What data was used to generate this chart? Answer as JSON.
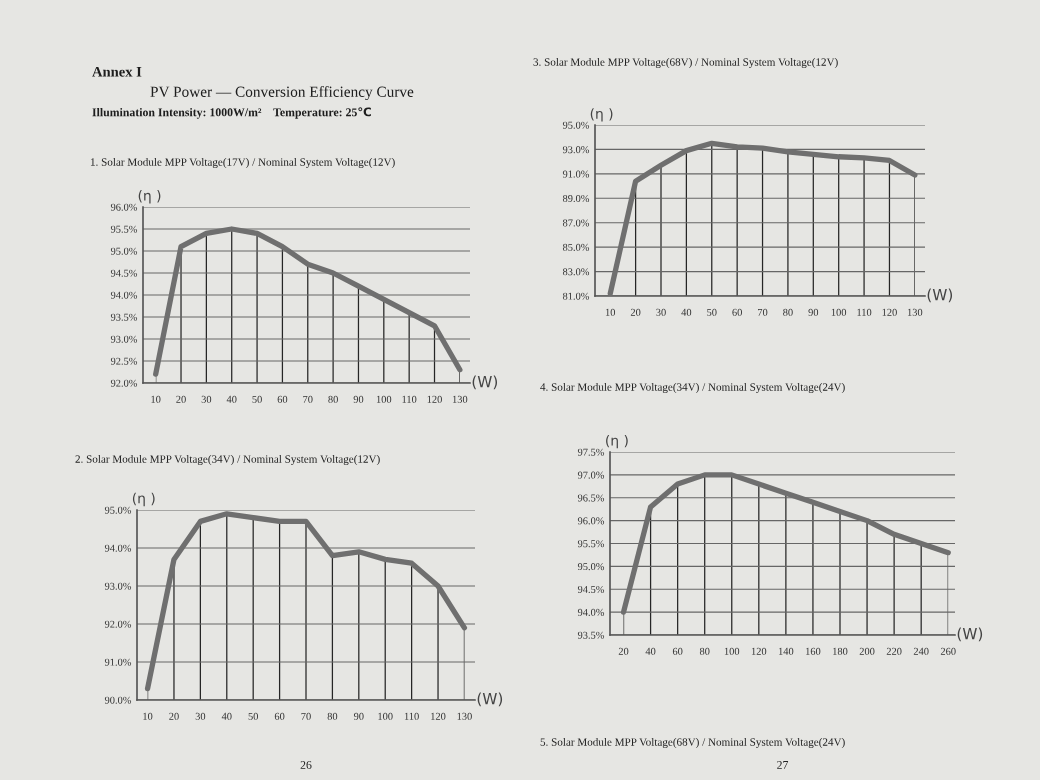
{
  "chart_data": [
    {
      "type": "line",
      "title": "1. Solar Module MPP Voltage(17V) / Nominal System Voltage(12V)",
      "xlabel": "(W)",
      "ylabel": "(η )",
      "x": [
        10,
        20,
        30,
        40,
        50,
        60,
        70,
        80,
        90,
        100,
        110,
        120,
        130
      ],
      "series": [
        {
          "color": "#6f6f6f",
          "values": [
            92.2,
            95.1,
            95.4,
            95.5,
            95.4,
            95.1,
            94.7,
            94.5,
            94.2,
            93.9,
            93.6,
            93.3,
            92.3
          ]
        }
      ],
      "xlim": [
        5,
        134
      ],
      "xticks": [
        10,
        20,
        30,
        40,
        50,
        60,
        70,
        80,
        90,
        100,
        110,
        120,
        130
      ],
      "ylim": [
        92,
        96
      ],
      "yticks": [
        {
          "value": 92,
          "label": "92.0%"
        },
        {
          "value": 92.5,
          "label": "92.5%"
        },
        {
          "value": 93,
          "label": "93.0%"
        },
        {
          "value": 93.5,
          "label": "93.5%"
        },
        {
          "value": 94,
          "label": "94.0%"
        },
        {
          "value": 94.5,
          "label": "94.5%"
        },
        {
          "value": 95,
          "label": "95.0%"
        },
        {
          "value": 95.5,
          "label": "95.5%"
        },
        {
          "value": 96,
          "label": "96.0%"
        }
      ],
      "grid": true,
      "line_style": "solid",
      "annotations": [
        "Annex I",
        "PV Power — Conversion Efficiency Curve",
        "Illumination Intensity: 1000W/m²    Temperature: 25℃"
      ]
    },
    {
      "type": "line",
      "title": "2. Solar Module MPP Voltage(34V) / Nominal System Voltage(12V)",
      "xlabel": "(W)",
      "ylabel": "(η )",
      "x": [
        10,
        20,
        30,
        40,
        50,
        60,
        70,
        80,
        90,
        100,
        110,
        120,
        130
      ],
      "series": [
        {
          "color": "#6f6f6f",
          "values": [
            90.3,
            93.7,
            94.7,
            94.9,
            94.8,
            94.7,
            94.7,
            93.8,
            93.9,
            93.7,
            93.6,
            93.0,
            91.9
          ]
        }
      ],
      "xlim": [
        6,
        134
      ],
      "xticks": [
        10,
        20,
        30,
        40,
        50,
        60,
        70,
        80,
        90,
        100,
        110,
        120,
        130
      ],
      "ylim": [
        90,
        95
      ],
      "yticks": [
        {
          "value": 90,
          "label": "90.0%"
        },
        {
          "value": 91,
          "label": "91.0%"
        },
        {
          "value": 92,
          "label": "92.0%"
        },
        {
          "value": 93,
          "label": "93.0%"
        },
        {
          "value": 94,
          "label": "94.0%"
        },
        {
          "value": 95,
          "label": "95.0%"
        }
      ],
      "grid": true,
      "line_style": "solid",
      "annotations": [
        "26"
      ]
    },
    {
      "type": "line",
      "title": "3. Solar Module MPP Voltage(68V) / Nominal System Voltage(12V)",
      "xlabel": "(W)",
      "ylabel": "(η )",
      "x": [
        10,
        20,
        30,
        40,
        50,
        60,
        70,
        80,
        90,
        100,
        110,
        120,
        130
      ],
      "series": [
        {
          "color": "#6f6f6f",
          "values": [
            81.2,
            90.4,
            91.7,
            92.9,
            93.5,
            93.2,
            93.1,
            92.8,
            92.6,
            92.4,
            92.3,
            92.1,
            90.9
          ]
        }
      ],
      "xlim": [
        4,
        134
      ],
      "xticks": [
        10,
        20,
        30,
        40,
        50,
        60,
        70,
        80,
        90,
        100,
        110,
        120,
        130
      ],
      "ylim": [
        81,
        95
      ],
      "yticks": [
        {
          "value": 81,
          "label": "81.0%"
        },
        {
          "value": 83,
          "label": "83.0%"
        },
        {
          "value": 85,
          "label": "85.0%"
        },
        {
          "value": 87,
          "label": "87.0%"
        },
        {
          "value": 89,
          "label": "89.0%"
        },
        {
          "value": 91,
          "label": "91.0%"
        },
        {
          "value": 93,
          "label": "93.0%"
        },
        {
          "value": 95,
          "label": "95.0%"
        }
      ],
      "grid": true,
      "line_style": "solid"
    },
    {
      "type": "line",
      "title": "4. Solar Module MPP Voltage(34V) / Nominal System Voltage(24V)",
      "xlabel": "(W)",
      "ylabel": "(η )",
      "x": [
        20,
        40,
        60,
        80,
        100,
        120,
        140,
        160,
        180,
        200,
        220,
        240,
        260
      ],
      "series": [
        {
          "color": "#6f6f6f",
          "values": [
            94.0,
            96.3,
            96.8,
            97.0,
            97.0,
            96.8,
            96.6,
            96.4,
            96.2,
            96.0,
            95.7,
            95.5,
            95.3
          ]
        }
      ],
      "xlim": [
        10,
        265
      ],
      "xticks": [
        20,
        40,
        60,
        80,
        100,
        120,
        140,
        160,
        180,
        200,
        220,
        240,
        260
      ],
      "ylim": [
        93.5,
        97.5
      ],
      "yticks": [
        {
          "value": 93.5,
          "label": "93.5%"
        },
        {
          "value": 94,
          "label": "94.0%"
        },
        {
          "value": 94.5,
          "label": "94.5%"
        },
        {
          "value": 95,
          "label": "95.0%"
        },
        {
          "value": 95.5,
          "label": "95.5%"
        },
        {
          "value": 96,
          "label": "96.0%"
        },
        {
          "value": 96.5,
          "label": "96.5%"
        },
        {
          "value": 97,
          "label": "97.0%"
        },
        {
          "value": 97.5,
          "label": "97.5%"
        }
      ],
      "grid": true,
      "line_style": "solid",
      "annotations": [
        "5. Solar Module MPP Voltage(68V) / Nominal System Voltage(24V)",
        "27"
      ]
    }
  ]
}
